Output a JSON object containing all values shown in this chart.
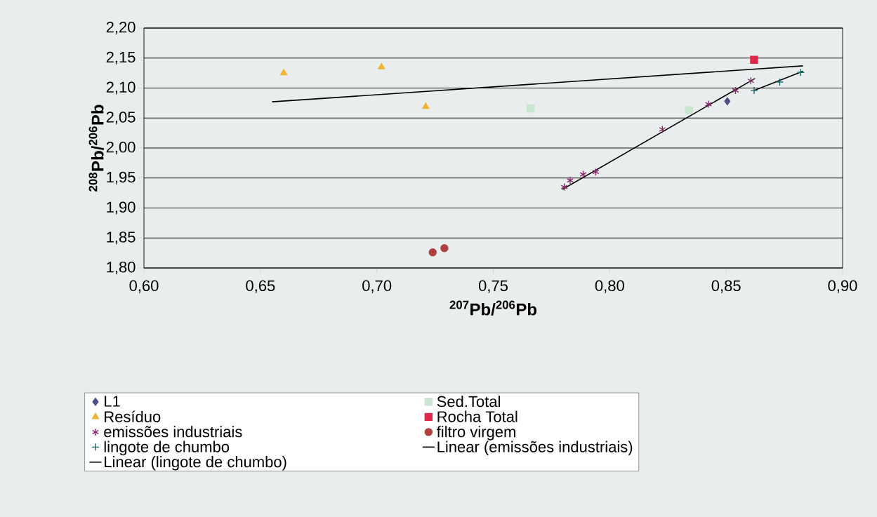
{
  "chart_data": {
    "type": "scatter",
    "xlabel": "$^{207}$Pb/$^{206}$Pb",
    "ylabel": "$^{208}$Pb/$^{206}$Pb",
    "xlim": [
      0.6,
      0.9
    ],
    "ylim": [
      1.8,
      2.2
    ],
    "xticks": [
      {
        "value": 0.6,
        "label": "0,60"
      },
      {
        "value": 0.65,
        "label": "0,65"
      },
      {
        "value": 0.7,
        "label": "0,70"
      },
      {
        "value": 0.75,
        "label": "0,75"
      },
      {
        "value": 0.8,
        "label": "0,80"
      },
      {
        "value": 0.85,
        "label": "0,85"
      },
      {
        "value": 0.9,
        "label": "0,90"
      }
    ],
    "yticks": [
      {
        "value": 1.8,
        "label": "1,80"
      },
      {
        "value": 1.85,
        "label": "1,85"
      },
      {
        "value": 1.9,
        "label": "1,90"
      },
      {
        "value": 1.95,
        "label": "1,95"
      },
      {
        "value": 2.0,
        "label": "2,00"
      },
      {
        "value": 2.05,
        "label": "2,05"
      },
      {
        "value": 2.1,
        "label": "2,10"
      },
      {
        "value": 2.15,
        "label": "2,15"
      },
      {
        "value": 2.2,
        "label": "2,20"
      }
    ],
    "grid": "y",
    "legend": "bottom",
    "series": [
      {
        "name": "L1",
        "marker": "diamond",
        "color": "#4b4f8a",
        "x": [
          0.8505
        ],
        "values": [
          2.078
        ]
      },
      {
        "name": "Sed.Total",
        "marker": "square",
        "color": "#c8e6d0",
        "x": [
          0.766,
          0.834
        ],
        "values": [
          2.066,
          2.063
        ]
      },
      {
        "name": "Resíduo",
        "marker": "triangle",
        "color": "#f0b430",
        "x": [
          0.66,
          0.702,
          0.721
        ],
        "values": [
          2.125,
          2.135,
          2.069
        ]
      },
      {
        "name": "Rocha Total",
        "marker": "square",
        "color": "#e0284a",
        "x": [
          0.862
        ],
        "values": [
          2.147
        ]
      },
      {
        "name": "emissões industriais",
        "color": "#8a2a6a",
        "x": [
          0.7805,
          0.783,
          0.7886,
          0.794,
          0.8226,
          0.8424,
          0.854,
          0.8606
        ],
        "values": [
          1.935,
          1.946,
          1.956,
          1.96,
          2.031,
          2.073,
          2.096,
          2.112
        ]
      },
      {
        "name": "filtro virgem",
        "marker": "circle",
        "color": "#b04040",
        "x": [
          0.724,
          0.729
        ],
        "values": [
          1.826,
          1.833
        ]
      },
      {
        "name": "lingote de chumbo",
        "marker": "cross",
        "color": "#1a6a6a",
        "x": [
          0.862,
          0.873,
          0.882
        ],
        "values": [
          2.096,
          2.11,
          2.126
        ]
      },
      {
        "name": "Linear (emissões industriais)",
        "type": "line",
        "marker": "none",
        "color": "#000000",
        "x": [
          0.7797,
          0.8624
        ],
        "values": [
          1.931,
          2.116
        ]
      },
      {
        "name": "Linear (lingote de chumbo)",
        "type": "line",
        "marker": "none",
        "color": "#000000",
        "x": [
          0.862,
          0.883
        ],
        "values": [
          2.096,
          2.128
        ]
      },
      {
        "type": "line",
        "marker": "none",
        "color": "#000000",
        "x": [
          0.655,
          0.883
        ],
        "values": [
          2.077,
          2.137
        ]
      }
    ]
  }
}
